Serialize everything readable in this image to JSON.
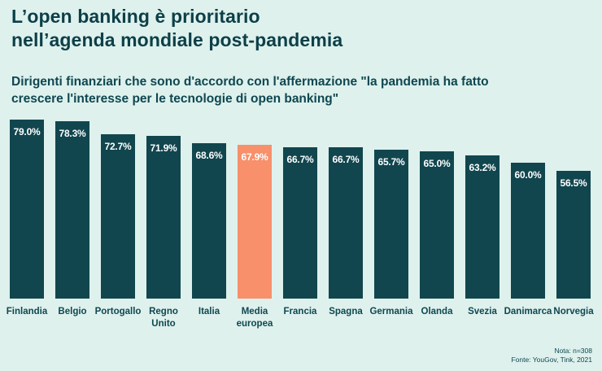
{
  "header": {
    "title_line1": "L’open banking è prioritario",
    "title_line2": "nell’agenda mondiale post-pandemia",
    "subtitle": "Dirigenti finanziari che sono d'accordo con l'affermazione \"la pandemia ha fatto crescere l'interesse per le tecnologie di open banking\""
  },
  "chart_data": {
    "type": "bar",
    "categories": [
      "Finlandia",
      "Belgio",
      "Portogallo",
      "Regno Unito",
      "Italia",
      "Media europea",
      "Francia",
      "Spagna",
      "Germania",
      "Olanda",
      "Svezia",
      "Danimarca",
      "Norvegia"
    ],
    "values": [
      79.0,
      78.3,
      72.7,
      71.9,
      68.6,
      67.9,
      66.7,
      66.7,
      65.7,
      65.0,
      63.2,
      60.0,
      56.5
    ],
    "value_labels": [
      "79.0%",
      "78.3%",
      "72.7%",
      "71.9%",
      "68.6%",
      "67.9%",
      "66.7%",
      "66.7%",
      "65.7%",
      "65.0%",
      "63.2%",
      "60.0%",
      "56.5%"
    ],
    "highlight_index": 5,
    "bar_color": "#11464e",
    "highlight_color": "#f7906b",
    "background_color": "#def1ed",
    "text_color": "#0f4750",
    "ylim": [
      0,
      79
    ],
    "title": "L’open banking è prioritario nell’agenda mondiale post-pandemia",
    "xlabel": "",
    "ylabel": "",
    "grid": false,
    "legend": false
  },
  "footer": {
    "note": "Nota: n=308",
    "source": "Fonte: YouGov, Tink, 2021"
  }
}
